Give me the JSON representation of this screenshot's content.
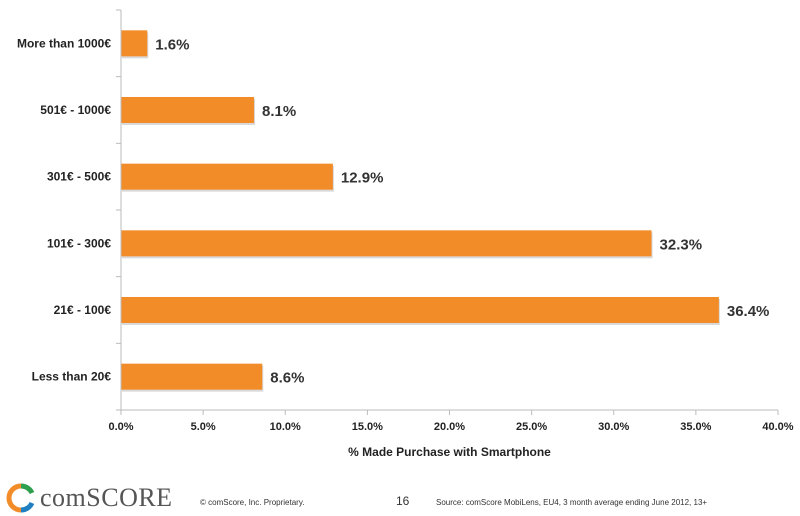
{
  "chart_data": {
    "type": "bar",
    "orientation": "horizontal",
    "categories": [
      "More than 1000€",
      "501€ - 1000€",
      "301€ - 500€",
      "101€ - 300€",
      "21€ - 100€",
      "Less than 20€"
    ],
    "values": [
      1.6,
      8.1,
      12.9,
      32.3,
      36.4,
      8.6
    ],
    "value_labels": [
      "1.6%",
      "8.1%",
      "12.9%",
      "32.3%",
      "36.4%",
      "8.6%"
    ],
    "xlabel": "% Made Purchase with Smartphone",
    "xlim": [
      0,
      40
    ],
    "xticks": [
      0,
      5,
      10,
      15,
      20,
      25,
      30,
      35,
      40
    ],
    "xtick_labels": [
      "0.0%",
      "5.0%",
      "10.0%",
      "15.0%",
      "20.0%",
      "25.0%",
      "30.0%",
      "35.0%",
      "40.0%"
    ],
    "grid": false,
    "bar_color": "#F28C28"
  },
  "footer": {
    "brand": "comSCORE",
    "copyright": "© comScore, Inc.   Proprietary.",
    "page_number": "16",
    "source": "Source: comScore MobiLens, EU4, 3 month average  ending June 2012, 13+"
  }
}
